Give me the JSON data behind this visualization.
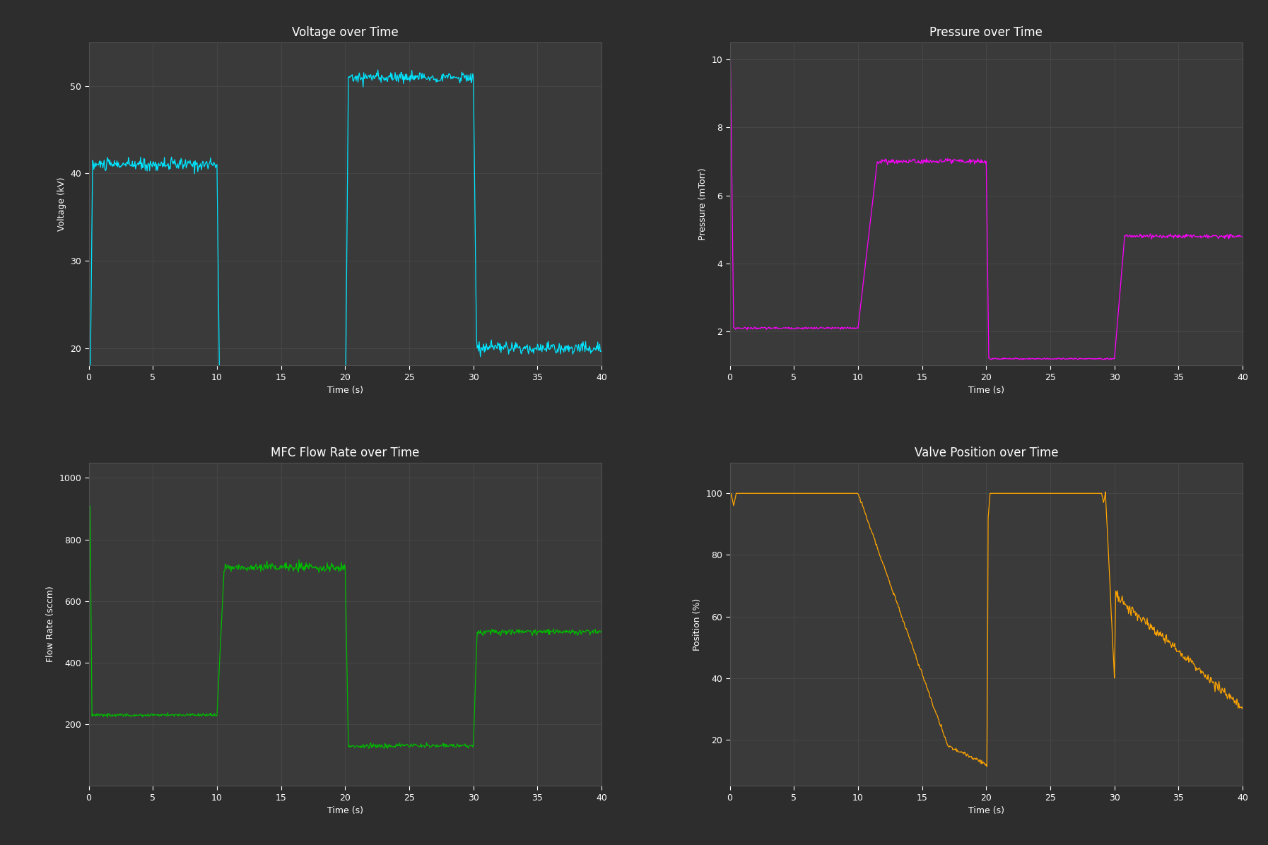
{
  "background_color": "#2d2d2d",
  "axes_bg_color": "#3a3a3a",
  "grid_color": "#505050",
  "text_color": "#ffffff",
  "title_fontsize": 12,
  "label_fontsize": 9,
  "tick_fontsize": 9,
  "voltage": {
    "title": "Voltage over Time",
    "xlabel": "Time (s)",
    "ylabel": "Voltage (kV)",
    "color": "#00e5ff",
    "ylim": [
      18,
      55
    ],
    "yticks": [
      20,
      30,
      40,
      50
    ],
    "xlim": [
      0,
      40
    ],
    "noise_seed": 10
  },
  "pressure": {
    "title": "Pressure over Time",
    "xlabel": "Time (s)",
    "ylabel": "Pressure (mTorr)",
    "color": "#ff00ff",
    "ylim": [
      1.0,
      10.5
    ],
    "yticks": [
      2,
      4,
      6,
      8,
      10
    ],
    "xlim": [
      0,
      40
    ],
    "noise_seed": 20
  },
  "flow": {
    "title": "MFC Flow Rate over Time",
    "xlabel": "Time (s)",
    "ylabel": "Flow Rate (sccm)",
    "color": "#00bb00",
    "ylim": [
      0,
      1050
    ],
    "yticks": [
      200,
      400,
      600,
      800,
      1000
    ],
    "xlim": [
      0,
      40
    ],
    "noise_seed": 30
  },
  "valve": {
    "title": "Valve Position over Time",
    "xlabel": "Time (s)",
    "ylabel": "Position (%)",
    "color": "#ffa500",
    "ylim": [
      5,
      110
    ],
    "yticks": [
      20,
      40,
      60,
      80,
      100
    ],
    "xlim": [
      0,
      40
    ],
    "noise_seed": 40
  }
}
